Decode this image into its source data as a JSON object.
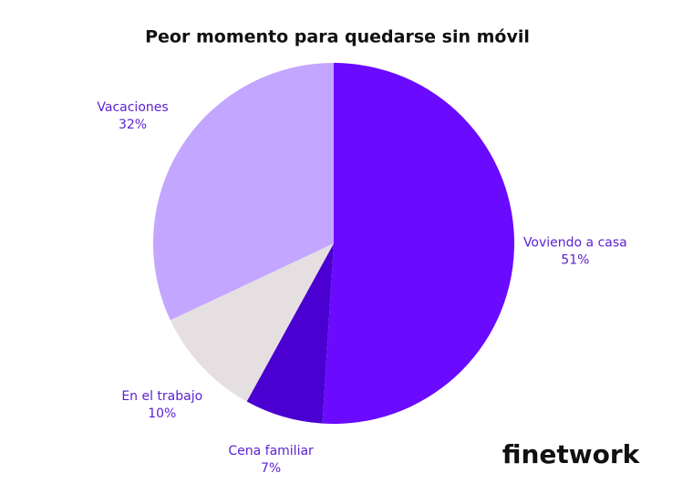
{
  "chart_data": {
    "type": "pie",
    "title": "Peor momento para quedarse sin móvil",
    "categories": [
      "Voviendo a casa",
      "Cena familiar",
      "En el trabajo",
      "Vacaciones"
    ],
    "values": [
      51,
      7,
      10,
      32
    ],
    "value_labels": [
      "51%",
      "7%",
      "10%",
      "32%"
    ],
    "colors": [
      "#6a0aff",
      "#4a00d0",
      "#e6dfe1",
      "#c3a6ff"
    ]
  },
  "logo": "finetwork"
}
